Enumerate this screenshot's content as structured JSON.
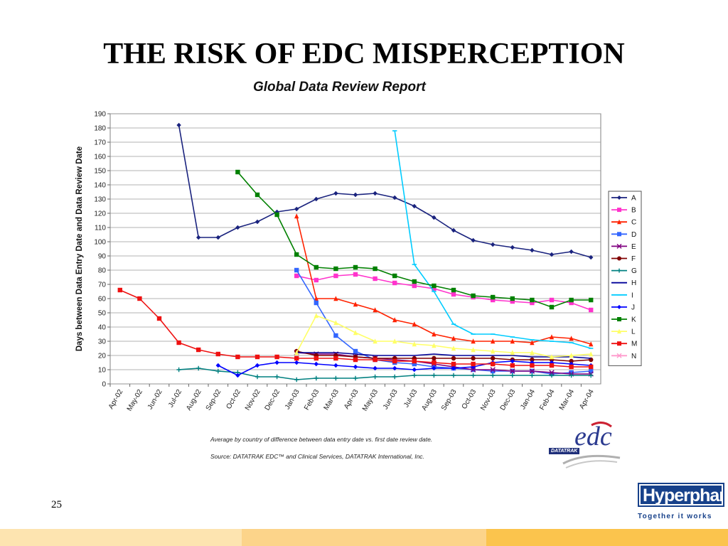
{
  "slide": {
    "title": "THE RISK OF EDC MISPERCEPTION",
    "page_number": "25",
    "note_1": "Average by country of difference between data entry date vs. first date review date.",
    "note_2": "Source:  DATATRAK EDC™ and Clinical Services, DATATRAK International, Inc.",
    "edc_logo_text": "edc",
    "edc_logo_brand": "DATATRAK",
    "hp_logo_name": "Hyperphar",
    "hp_logo_tagline": "Together it works",
    "band_colors": [
      "#fde4b0",
      "#fcd48a",
      "#fbc44d"
    ]
  },
  "chart_data": {
    "type": "line",
    "title": "Global Data Review Report",
    "xlabel": "",
    "ylabel": "Days between Data Entry Date and Data Review Date",
    "ylim": [
      0,
      190
    ],
    "yticks": [
      0,
      10,
      20,
      30,
      40,
      50,
      60,
      70,
      80,
      90,
      100,
      110,
      120,
      130,
      140,
      150,
      160,
      170,
      180,
      190
    ],
    "grid": true,
    "legend_position": "right",
    "categories": [
      "Apr-02",
      "May-02",
      "Jun-02",
      "Jul-02",
      "Aug-02",
      "Sep-02",
      "Oct-02",
      "Nov-02",
      "Dec-02",
      "Jan-03",
      "Feb-03",
      "Mar-03",
      "Apr-03",
      "May-03",
      "Jun-03",
      "Jul-03",
      "Aug-03",
      "Sep-03",
      "Oct-03",
      "Nov-03",
      "Dec-03",
      "Jan-04",
      "Feb-04",
      "Mar-04",
      "Apr-04"
    ],
    "series": [
      {
        "name": "A",
        "color": "#1a237e",
        "marker": "diamond",
        "values": [
          null,
          null,
          null,
          182,
          103,
          103,
          110,
          114,
          121,
          123,
          130,
          134,
          133,
          134,
          131,
          125,
          117,
          108,
          101,
          98,
          96,
          94,
          91,
          93,
          89
        ]
      },
      {
        "name": "B",
        "color": "#ff33cc",
        "marker": "square",
        "values": [
          null,
          null,
          null,
          null,
          null,
          null,
          null,
          null,
          null,
          76,
          73,
          76,
          77,
          74,
          71,
          69,
          67,
          63,
          61,
          59,
          58,
          57,
          59,
          57,
          52
        ]
      },
      {
        "name": "C",
        "color": "#ff2200",
        "marker": "triangle",
        "values": [
          null,
          null,
          null,
          null,
          null,
          null,
          null,
          null,
          null,
          118,
          60,
          60,
          56,
          52,
          45,
          42,
          35,
          32,
          30,
          30,
          30,
          29,
          33,
          32,
          28
        ]
      },
      {
        "name": "D",
        "color": "#3366ff",
        "marker": "square",
        "values": [
          null,
          null,
          null,
          null,
          null,
          null,
          null,
          null,
          null,
          80,
          57,
          34,
          23,
          17,
          15,
          14,
          12,
          11,
          10,
          9,
          9,
          9,
          7,
          8,
          9
        ]
      },
      {
        "name": "E",
        "color": "#800080",
        "marker": "x",
        "values": [
          null,
          null,
          null,
          null,
          null,
          null,
          null,
          null,
          null,
          22,
          21,
          21,
          19,
          18,
          17,
          16,
          14,
          12,
          10,
          10,
          9,
          9,
          8,
          7,
          7
        ]
      },
      {
        "name": "F",
        "color": "#800000",
        "marker": "circle",
        "values": [
          null,
          null,
          null,
          null,
          null,
          null,
          null,
          null,
          null,
          23,
          20,
          20,
          19,
          18,
          18,
          18,
          18,
          18,
          18,
          18,
          17,
          17,
          17,
          16,
          17
        ]
      },
      {
        "name": "G",
        "color": "#008080",
        "marker": "plus",
        "values": [
          null,
          null,
          null,
          10,
          11,
          9,
          8,
          5,
          5,
          3,
          4,
          4,
          4,
          5,
          5,
          6,
          6,
          6,
          6,
          6,
          6,
          6,
          6,
          6,
          6
        ]
      },
      {
        "name": "H",
        "color": "#000099",
        "marker": "none",
        "values": [
          null,
          null,
          null,
          null,
          null,
          null,
          null,
          null,
          null,
          22,
          22,
          22,
          21,
          20,
          20,
          20,
          21,
          20,
          20,
          20,
          20,
          19,
          19,
          19,
          18
        ]
      },
      {
        "name": "I",
        "color": "#00ccff",
        "marker": "dash",
        "values": [
          null,
          null,
          null,
          null,
          null,
          null,
          null,
          null,
          null,
          null,
          null,
          null,
          null,
          null,
          178,
          84,
          65,
          42,
          35,
          35,
          33,
          31,
          30,
          29,
          25
        ]
      },
      {
        "name": "J",
        "color": "#0000ff",
        "marker": "diamond",
        "values": [
          null,
          null,
          null,
          null,
          null,
          13,
          6,
          13,
          15,
          15,
          14,
          13,
          12,
          11,
          11,
          10,
          11,
          11,
          12,
          15,
          16,
          15,
          15,
          14,
          13
        ]
      },
      {
        "name": "K",
        "color": "#008000",
        "marker": "square",
        "values": [
          null,
          null,
          null,
          null,
          null,
          null,
          149,
          133,
          119,
          91,
          82,
          81,
          82,
          81,
          76,
          72,
          69,
          66,
          62,
          61,
          60,
          59,
          54,
          59,
          59
        ]
      },
      {
        "name": "L",
        "color": "#ffff66",
        "marker": "triangle",
        "values": [
          null,
          null,
          null,
          null,
          null,
          null,
          null,
          null,
          null,
          22,
          48,
          43,
          36,
          30,
          30,
          28,
          27,
          25,
          24,
          23,
          22,
          22,
          19,
          20,
          21
        ]
      },
      {
        "name": "M",
        "color": "#ee1111",
        "marker": "square",
        "values": [
          66,
          60,
          46,
          29,
          24,
          21,
          19,
          19,
          19,
          18,
          18,
          18,
          17,
          17,
          16,
          16,
          15,
          14,
          14,
          14,
          13,
          13,
          13,
          12,
          12
        ]
      },
      {
        "name": "N",
        "color": "#ff99cc",
        "marker": "x",
        "values": [
          null,
          null,
          null,
          null,
          null,
          null,
          null,
          null,
          null,
          null,
          null,
          null,
          null,
          null,
          null,
          null,
          null,
          null,
          null,
          null,
          null,
          null,
          null,
          null,
          null
        ]
      }
    ]
  }
}
